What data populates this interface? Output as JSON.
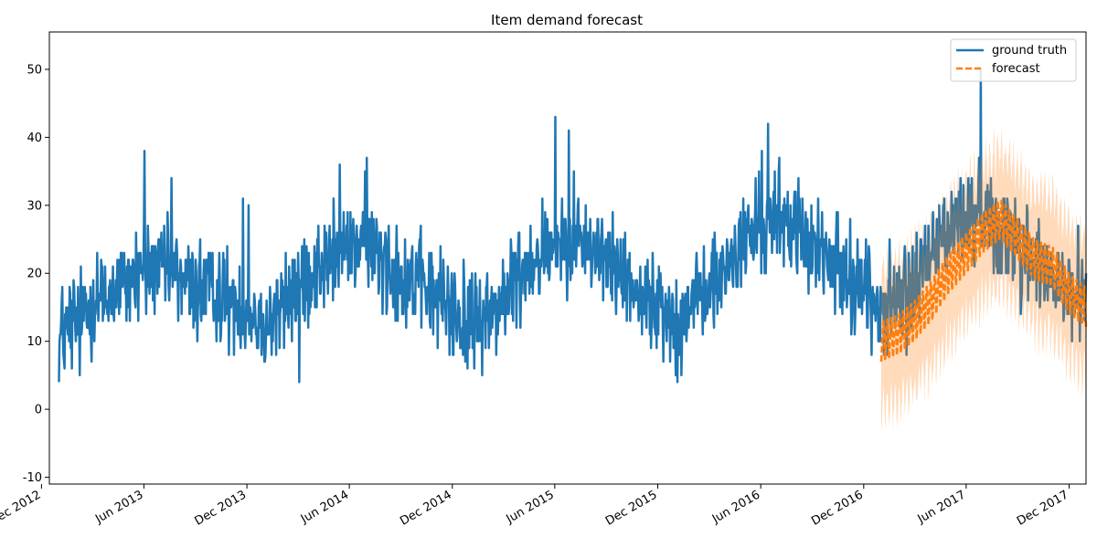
{
  "chart_data": {
    "type": "line",
    "title": "Item demand forecast",
    "xlabel": "",
    "ylabel": "",
    "x_range": [
      "2012-12-15",
      "2017-12-31"
    ],
    "ylim": [
      -11,
      55.5
    ],
    "yticks": [
      -10,
      0,
      10,
      20,
      30,
      40,
      50
    ],
    "xticks": [
      {
        "date": "2012-12-01",
        "label": "Dec 2012"
      },
      {
        "date": "2013-06-01",
        "label": "Jun 2013"
      },
      {
        "date": "2013-12-01",
        "label": "Dec 2013"
      },
      {
        "date": "2014-06-01",
        "label": "Jun 2014"
      },
      {
        "date": "2014-12-01",
        "label": "Dec 2014"
      },
      {
        "date": "2015-06-01",
        "label": "Jun 2015"
      },
      {
        "date": "2015-12-01",
        "label": "Dec 2015"
      },
      {
        "date": "2016-06-01",
        "label": "Jun 2016"
      },
      {
        "date": "2016-12-01",
        "label": "Dec 2016"
      },
      {
        "date": "2017-06-01",
        "label": "Jun 2017"
      },
      {
        "date": "2017-12-01",
        "label": "Dec 2017"
      }
    ],
    "grid": false,
    "legend_position": "top-right",
    "series": [
      {
        "name": "ground truth",
        "style": "solid",
        "color": "#1f77b4",
        "daily": false,
        "x": [
          "2013-01-01",
          "2013-02-01",
          "2013-03-01",
          "2013-04-01",
          "2013-05-01",
          "2013-06-01",
          "2013-07-01",
          "2013-08-01",
          "2013-09-01",
          "2013-10-01",
          "2013-11-01",
          "2013-12-01",
          "2014-01-01",
          "2014-02-01",
          "2014-03-01",
          "2014-04-01",
          "2014-05-01",
          "2014-06-01",
          "2014-07-01",
          "2014-08-01",
          "2014-09-01",
          "2014-10-01",
          "2014-11-01",
          "2014-12-01",
          "2015-01-01",
          "2015-02-01",
          "2015-03-01",
          "2015-04-01",
          "2015-05-01",
          "2015-06-01",
          "2015-07-01",
          "2015-08-01",
          "2015-09-01",
          "2015-10-01",
          "2015-11-01",
          "2015-12-01",
          "2016-01-01",
          "2016-02-01",
          "2016-03-01",
          "2016-04-01",
          "2016-05-01",
          "2016-06-01",
          "2016-07-01",
          "2016-08-01",
          "2016-09-01",
          "2016-10-01",
          "2016-11-01",
          "2016-12-01",
          "2017-01-01",
          "2017-02-01",
          "2017-03-01",
          "2017-04-01",
          "2017-05-01",
          "2017-06-01",
          "2017-07-01",
          "2017-08-01",
          "2017-09-01",
          "2017-10-01",
          "2017-11-01",
          "2017-12-01"
        ],
        "values": [
          10,
          12,
          15,
          16,
          18,
          20,
          20,
          19,
          17,
          17,
          15,
          14,
          12,
          14,
          17,
          20,
          21,
          23,
          24,
          22,
          19,
          18,
          16,
          14,
          12,
          13,
          15,
          19,
          22,
          24,
          25,
          23,
          21,
          19,
          16,
          14,
          12,
          15,
          17,
          20,
          24,
          26,
          27,
          26,
          23,
          21,
          19,
          17,
          14,
          15,
          17,
          22,
          26,
          27,
          28,
          26,
          23,
          21,
          18,
          16
        ],
        "extremes": [
          {
            "x": "2013-02-07",
            "y": 5
          },
          {
            "x": "2013-06-02",
            "y": 38
          },
          {
            "x": "2013-07-20",
            "y": 34
          },
          {
            "x": "2013-11-24",
            "y": 31
          },
          {
            "x": "2013-12-04",
            "y": 30
          },
          {
            "x": "2014-03-04",
            "y": 4
          },
          {
            "x": "2014-05-15",
            "y": 36
          },
          {
            "x": "2014-07-02",
            "y": 37
          },
          {
            "x": "2014-12-28",
            "y": 6
          },
          {
            "x": "2015-06-02",
            "y": 43
          },
          {
            "x": "2015-06-26",
            "y": 41
          },
          {
            "x": "2016-01-05",
            "y": 4
          },
          {
            "x": "2016-06-03",
            "y": 38
          },
          {
            "x": "2016-06-14",
            "y": 42
          },
          {
            "x": "2017-06-27",
            "y": 50
          }
        ]
      },
      {
        "name": "forecast",
        "style": "dashed",
        "color": "#ff7f0e",
        "daily": true,
        "x": [
          "2017-01-01",
          "2017-02-01",
          "2017-03-01",
          "2017-04-01",
          "2017-05-01",
          "2017-06-01",
          "2017-07-01",
          "2017-08-01",
          "2017-09-01",
          "2017-10-01",
          "2017-11-01",
          "2017-12-01",
          "2017-12-31"
        ],
        "values": [
          10,
          11,
          13,
          16,
          20,
          23,
          26,
          28,
          25,
          22,
          21,
          17,
          15
        ],
        "band_half_width": 10
      }
    ]
  }
}
